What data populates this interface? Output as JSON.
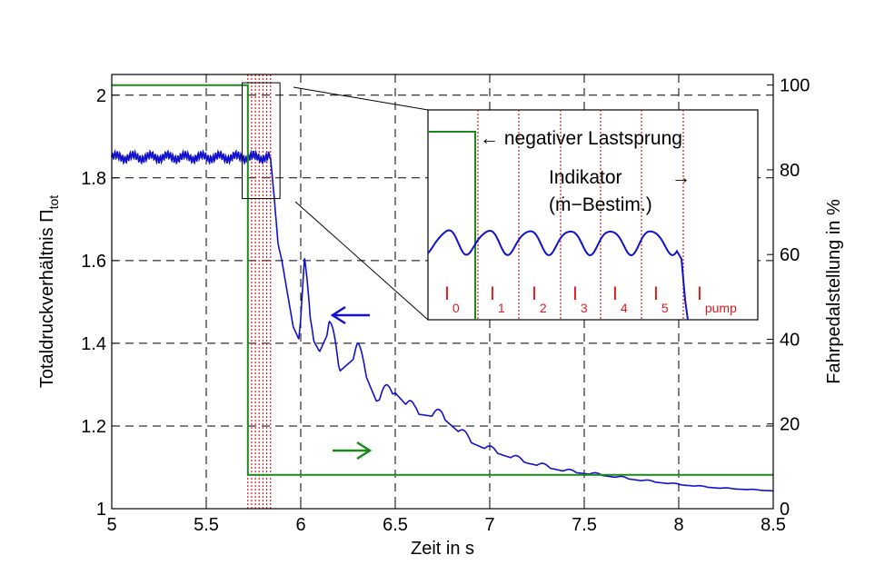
{
  "chart_data": {
    "type": "line",
    "xlabel": "Zeit in s",
    "ylabel": {
      "prefix": "Totaldruckverhältnis Π",
      "subscript": "tot"
    },
    "y2label": "Fahrpedalstellung in %",
    "xlim": [
      5,
      8.5
    ],
    "ylim": [
      1,
      2.05
    ],
    "y2lim": [
      0,
      102.5
    ],
    "xticks": [
      "5",
      "5.5",
      "6",
      "6.5",
      "7",
      "7.5",
      "8",
      "8.5"
    ],
    "yticks": [
      "1",
      "1.2",
      "1.4",
      "1.6",
      "1.8",
      "2"
    ],
    "y2ticks": [
      "0",
      "20",
      "40",
      "60",
      "80",
      "100"
    ],
    "grid": true,
    "series": [
      {
        "axis": "left",
        "color": "#1111cc",
        "description_values": {
          "steady_level": 1.85,
          "steady_oscillation_amplitude": 0.018,
          "drop_start_time": 5.84,
          "decay_points": [
            [
              5.84,
              1.85
            ],
            [
              5.86,
              1.75
            ],
            [
              5.88,
              1.64
            ],
            [
              5.9,
              1.6
            ],
            [
              5.93,
              1.52
            ],
            [
              5.96,
              1.44
            ],
            [
              5.99,
              1.41
            ],
            [
              6.02,
              1.56
            ],
            [
              6.05,
              1.42
            ],
            [
              6.1,
              1.38
            ],
            [
              6.15,
              1.43
            ],
            [
              6.2,
              1.33
            ],
            [
              6.3,
              1.37
            ],
            [
              6.4,
              1.26
            ],
            [
              6.5,
              1.28
            ],
            [
              6.6,
              1.23
            ],
            [
              6.75,
              1.22
            ],
            [
              6.9,
              1.16
            ],
            [
              7.0,
              1.14
            ],
            [
              7.2,
              1.11
            ],
            [
              7.4,
              1.09
            ],
            [
              7.6,
              1.08
            ],
            [
              7.8,
              1.068
            ],
            [
              8.0,
              1.058
            ],
            [
              8.2,
              1.05
            ],
            [
              8.5,
              1.043
            ]
          ]
        }
      },
      {
        "axis": "right",
        "color": "#1a8a1a",
        "points": [
          [
            5,
            100
          ],
          [
            5.72,
            100
          ],
          [
            5.72,
            8
          ],
          [
            8.5,
            8
          ]
        ]
      }
    ],
    "interval_lines": [
      5.72,
      5.74,
      5.76,
      5.78,
      5.8,
      5.82,
      5.84
    ],
    "zoom_box": {
      "x": [
        5.69,
        5.89
      ],
      "y": [
        1.75,
        2.03
      ]
    },
    "inset": {
      "annotation_step": "← negativer Lastsprung",
      "annotation_indicator_line1": "Indikator",
      "annotation_indicator_arrow": "→",
      "annotation_indicator_line2": "(ṁ−Bestim.)",
      "intervals": [
        {
          "base": "I",
          "sub": "0"
        },
        {
          "base": "I",
          "sub": "1"
        },
        {
          "base": "I",
          "sub": "2"
        },
        {
          "base": "I",
          "sub": "3"
        },
        {
          "base": "I",
          "sub": "4"
        },
        {
          "base": "I",
          "sub": "5"
        },
        {
          "base": "I",
          "sub": "pump"
        }
      ]
    },
    "arrows": [
      {
        "series": "left",
        "direction": "left",
        "color": "#1111cc"
      },
      {
        "series": "right",
        "direction": "right",
        "color": "#1a8a1a"
      }
    ]
  }
}
